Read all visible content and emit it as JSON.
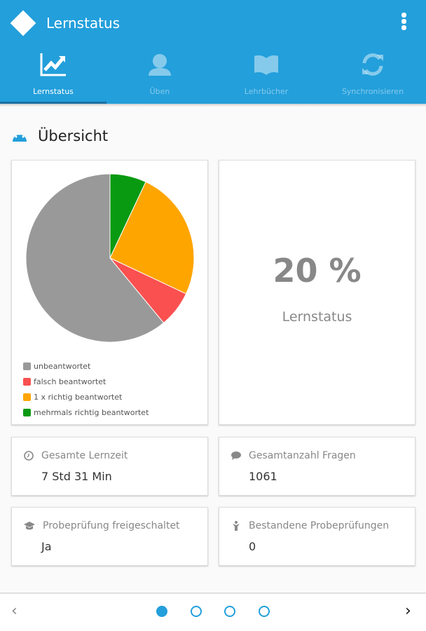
{
  "header": {
    "title": "Lernstatus"
  },
  "tabs": [
    {
      "label": "Lernstatus",
      "icon": "chart-line-icon"
    },
    {
      "label": "Üben",
      "icon": "learner-icon"
    },
    {
      "label": "Lehrbücher",
      "icon": "book-icon"
    },
    {
      "label": "Synchronisieren",
      "icon": "sync-icon"
    }
  ],
  "section": {
    "title": "Übersicht"
  },
  "chart_data": {
    "type": "pie",
    "series": [
      {
        "name": "mehrmals richtig beantwortet",
        "value": 7,
        "color": "#0a9a12"
      },
      {
        "name": "1 x richtig beantwortet",
        "value": 25,
        "color": "#ffa500"
      },
      {
        "name": "falsch beantwortet",
        "value": 7,
        "color": "#fa5050"
      },
      {
        "name": "unbeantwortet",
        "value": 61,
        "color": "#999999"
      }
    ],
    "legend": [
      "unbeantwortet",
      "falsch beantwortet",
      "1 x richtig beantwortet",
      "mehrmals richtig beantwortet"
    ]
  },
  "status": {
    "value": "20 %",
    "label": "Lernstatus"
  },
  "stats": [
    {
      "label": "Gesamte Lernzeit",
      "value": "7 Std 31 Min"
    },
    {
      "label": "Gesamtanzahl Fragen",
      "value": "1061"
    },
    {
      "label": "Probeprüfung freigeschaltet",
      "value": "Ja"
    },
    {
      "label": "Bestandene Probeprüfungen",
      "value": "0"
    }
  ],
  "pager": {
    "prev": "‹",
    "next": "›",
    "pages": 4,
    "current": 1
  }
}
